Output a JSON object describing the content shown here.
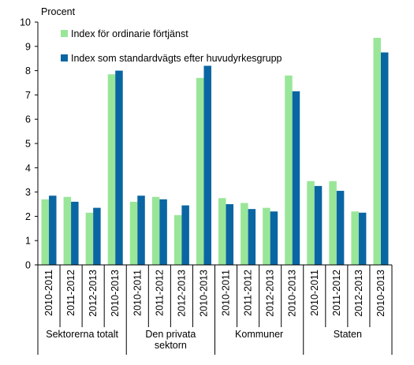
{
  "chart_data": {
    "type": "bar",
    "ylabel": "Procent",
    "ylim": [
      0,
      10
    ],
    "yticks": [
      0,
      1,
      2,
      3,
      4,
      5,
      6,
      7,
      8,
      9,
      10
    ],
    "grid": false,
    "legend_position": "top-left",
    "groups": [
      {
        "label": "Sektorerna totalt",
        "categories": [
          "2010-2011",
          "2011-2012",
          "2012-2013",
          "2010-2013"
        ]
      },
      {
        "label": "Den privata sektorn",
        "categories": [
          "2010-2011",
          "2011-2012",
          "2012-2013",
          "2010-2013"
        ]
      },
      {
        "label": "Kommuner",
        "categories": [
          "2010-2011",
          "2011-2012",
          "2012-2013",
          "2010-2013"
        ]
      },
      {
        "label": "Staten",
        "categories": [
          "2010-2011",
          "2011-2012",
          "2012-2013",
          "2010-2013"
        ]
      }
    ],
    "series": [
      {
        "name": "Index för ordinarie förtjänst",
        "color": "#99E699",
        "values": [
          2.7,
          2.8,
          2.15,
          7.85,
          2.6,
          2.8,
          2.05,
          7.7,
          2.75,
          2.55,
          2.35,
          7.8,
          3.45,
          3.45,
          2.2,
          9.35
        ]
      },
      {
        "name": "Index som standardvägts efter huvudyrkesgrupp",
        "color": "#0A66A3",
        "values": [
          2.85,
          2.6,
          2.35,
          8.0,
          2.85,
          2.7,
          2.45,
          8.2,
          2.5,
          2.3,
          2.2,
          7.15,
          3.25,
          3.05,
          2.15,
          8.75
        ]
      }
    ]
  }
}
